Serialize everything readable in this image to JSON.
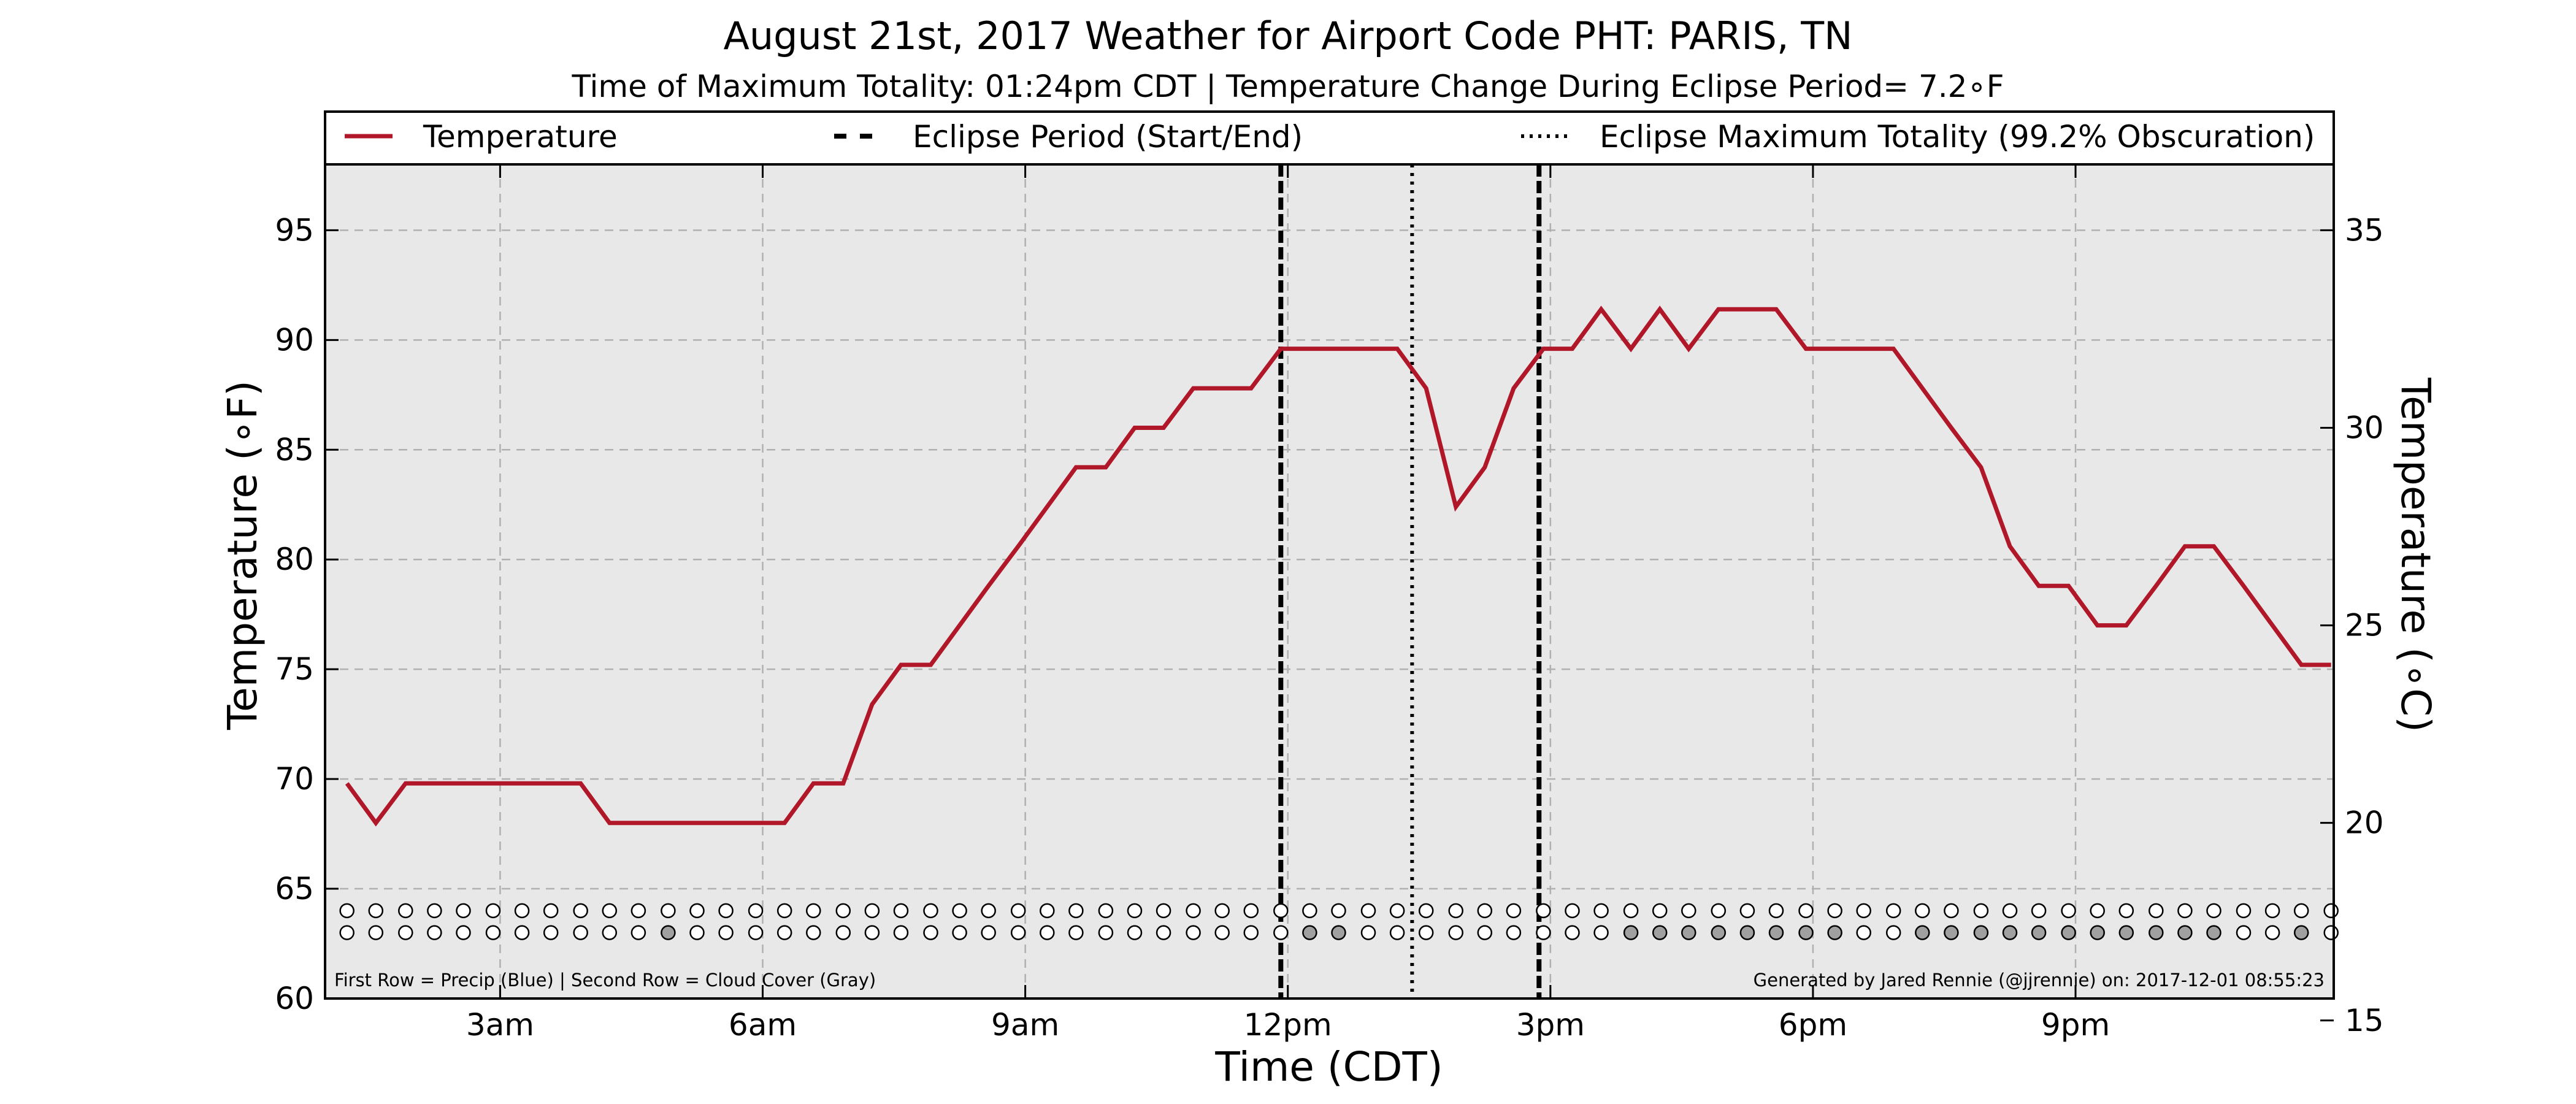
{
  "chart_data": {
    "type": "line",
    "title": "August 21st, 2017 Weather for Airport Code PHT: PARIS, TN",
    "subtitle": "Time of Maximum Totality: 01:24pm CDT | Temperature Change During Eclipse Period= 7.2∘F",
    "xlabel": "Time (CDT)",
    "ylabel": "Temperature (∘F)",
    "ylabel_right": "Temperature (∘C)",
    "xlim": [
      1.0,
      23.95
    ],
    "ylim": [
      60,
      98
    ],
    "ylim_right_c": [
      15.56,
      36.67
    ],
    "x_ticks": [
      {
        "x": 3,
        "label": "3am"
      },
      {
        "x": 6,
        "label": "6am"
      },
      {
        "x": 9,
        "label": "9am"
      },
      {
        "x": 12,
        "label": "12pm"
      },
      {
        "x": 15,
        "label": "3pm"
      },
      {
        "x": 18,
        "label": "6pm"
      },
      {
        "x": 21,
        "label": "9pm"
      }
    ],
    "y_ticks": [
      60,
      65,
      70,
      75,
      80,
      85,
      90,
      95
    ],
    "y_ticks_right_c": [
      15,
      20,
      25,
      30,
      35
    ],
    "grid": true,
    "legend_placement": "top, spanning full width",
    "legend": [
      {
        "name": "Temperature",
        "style": "solid",
        "color": "#b0182a"
      },
      {
        "name": "Eclipse Period (Start/End)",
        "style": "dashed",
        "color": "#000000"
      },
      {
        "name": "Eclipse Maximum Totality (99.2% Obscuration)",
        "style": "dotted",
        "color": "#000000"
      }
    ],
    "series": [
      {
        "name": "Temperature",
        "color": "#b0182a",
        "x": [
          1.25,
          1.58,
          1.92,
          2.25,
          2.58,
          2.92,
          3.25,
          3.58,
          3.92,
          4.25,
          4.58,
          4.92,
          5.25,
          5.58,
          5.92,
          6.25,
          6.58,
          6.92,
          7.25,
          7.58,
          7.92,
          8.25,
          8.58,
          8.92,
          9.25,
          9.58,
          9.92,
          10.25,
          10.58,
          10.92,
          11.25,
          11.58,
          11.92,
          12.25,
          12.58,
          12.92,
          13.25,
          13.58,
          13.92,
          14.25,
          14.58,
          14.92,
          15.25,
          15.58,
          15.92,
          16.25,
          16.58,
          16.92,
          17.25,
          17.58,
          17.92,
          18.25,
          18.58,
          18.92,
          19.25,
          19.58,
          19.92,
          20.25,
          20.58,
          20.92,
          21.25,
          21.58,
          21.92,
          22.25,
          22.58,
          22.92,
          23.25,
          23.58,
          23.92
        ],
        "y": [
          69.8,
          68.0,
          69.8,
          69.8,
          69.8,
          69.8,
          69.8,
          69.8,
          69.8,
          68.0,
          68.0,
          68.0,
          68.0,
          68.0,
          68.0,
          68.0,
          69.8,
          69.8,
          73.4,
          75.2,
          75.2,
          77.0,
          78.8,
          80.6,
          82.4,
          84.2,
          84.2,
          86.0,
          86.0,
          87.8,
          87.8,
          87.8,
          89.6,
          89.6,
          89.6,
          89.6,
          89.6,
          87.8,
          82.4,
          84.2,
          87.8,
          89.6,
          89.6,
          91.4,
          89.6,
          91.4,
          89.6,
          91.4,
          91.4,
          91.4,
          89.6,
          89.6,
          89.6,
          89.6,
          87.8,
          86.0,
          84.2,
          80.6,
          78.8,
          78.8,
          77.0,
          77.0,
          78.8,
          80.6,
          80.6,
          78.8,
          77.0,
          75.2,
          75.2
        ]
      }
    ],
    "eclipse_start": 11.92,
    "eclipse_end": 14.87,
    "eclipse_max": 13.42,
    "precip_row_y": 64,
    "cloud_row_y": 63,
    "marker_x": [
      1.25,
      1.58,
      1.92,
      2.25,
      2.58,
      2.92,
      3.25,
      3.58,
      3.92,
      4.25,
      4.58,
      4.92,
      5.25,
      5.58,
      5.92,
      6.25,
      6.58,
      6.92,
      7.25,
      7.58,
      7.92,
      8.25,
      8.58,
      8.92,
      9.25,
      9.58,
      9.92,
      10.25,
      10.58,
      10.92,
      11.25,
      11.58,
      11.92,
      12.25,
      12.58,
      12.92,
      13.25,
      13.58,
      13.92,
      14.25,
      14.58,
      14.92,
      15.25,
      15.58,
      15.92,
      16.25,
      16.58,
      16.92,
      17.25,
      17.58,
      17.92,
      18.25,
      18.58,
      18.92,
      19.25,
      19.58,
      19.92,
      20.25,
      20.58,
      20.92,
      21.25,
      21.58,
      21.92,
      22.25,
      22.58,
      22.92,
      23.25,
      23.58,
      23.92
    ],
    "precip_fill": [
      0,
      0,
      0,
      0,
      0,
      0,
      0,
      0,
      0,
      0,
      0,
      0,
      0,
      0,
      0,
      0,
      0,
      0,
      0,
      0,
      0,
      0,
      0,
      0,
      0,
      0,
      0,
      0,
      0,
      0,
      0,
      0,
      0,
      0,
      0,
      0,
      0,
      0,
      0,
      0,
      0,
      0,
      0,
      0,
      0,
      0,
      0,
      0,
      0,
      0,
      0,
      0,
      0,
      0,
      0,
      0,
      0,
      0,
      0,
      0,
      0,
      0,
      0,
      0,
      0,
      0,
      0,
      0,
      0
    ],
    "cloud_fill": [
      0,
      0,
      0,
      0,
      0,
      0,
      0,
      0,
      0,
      0,
      0,
      1,
      0,
      0,
      0,
      0,
      0,
      0,
      0,
      0,
      0,
      0,
      0,
      0,
      0,
      0,
      0,
      0,
      0,
      0,
      0,
      0,
      0,
      1,
      1,
      0,
      0,
      0,
      0,
      0,
      0,
      0,
      0,
      0,
      1,
      1,
      1,
      1,
      1,
      1,
      1,
      1,
      0,
      0,
      1,
      1,
      1,
      1,
      1,
      1,
      1,
      1,
      1,
      1,
      1,
      0,
      0,
      1,
      0
    ],
    "colors": {
      "temperature": "#b0182a",
      "plot_background": "#e8e8e8",
      "grid": "#b0b0b0",
      "cloud_fill": "#a0a0a0",
      "marker_empty": "#ffffff"
    },
    "annotations": {
      "bottom_left": "First Row = Precip (Blue) | Second Row = Cloud Cover (Gray)",
      "bottom_right": "Generated by Jared Rennie (@jjrennie) on: 2017-12-01 08:55:23"
    }
  }
}
